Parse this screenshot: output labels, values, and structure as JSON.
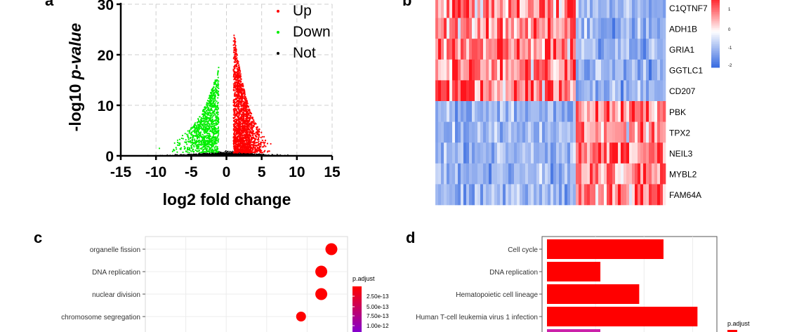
{
  "panels": {
    "a": "a",
    "b": "b",
    "c": "c",
    "d": "d"
  },
  "chart_data": [
    {
      "panel": "a",
      "type": "scatter",
      "title": "",
      "xlabel": "log2 fold change",
      "ylabel_prefix": "-log10 ",
      "ylabel_italic": "p-value",
      "xlim": [
        -15,
        15
      ],
      "ylim": [
        0,
        30
      ],
      "xticks": [
        -15,
        -10,
        -5,
        0,
        5,
        10,
        15
      ],
      "yticks": [
        0,
        10,
        20,
        30
      ],
      "grid": true,
      "legend": [
        "Up",
        "Down",
        "Not"
      ],
      "series": [
        {
          "name": "Up",
          "color": "#ff0000",
          "x_range": [
            1,
            7.5
          ],
          "max_y": 25,
          "approx_points": 1800
        },
        {
          "name": "Down",
          "color": "#00ee00",
          "x_range": [
            -10,
            -1
          ],
          "max_y": 17,
          "approx_points": 1000
        },
        {
          "name": "Not",
          "color": "#000000",
          "x_range": [
            -13,
            9
          ],
          "max_y": 1.5,
          "approx_points": 1500
        }
      ]
    },
    {
      "panel": "b",
      "type": "heatmap",
      "genes": [
        "C1QTNF7",
        "ADH1B",
        "GRIA1",
        "GGTLC1",
        "CD207",
        "PBK",
        "TPX2",
        "NEIL3",
        "MYBL2",
        "FAM64A"
      ],
      "group_pattern": [
        "high-left",
        "high-left",
        "high-left",
        "high-left",
        "high-left",
        "high-right",
        "high-right",
        "high-right",
        "high-right",
        "high-right"
      ],
      "colorbar_ticks": [
        "1",
        "0",
        "-1",
        "-2"
      ],
      "colors": {
        "high": "#e31a1c",
        "mid": "#ffffff",
        "low": "#4169e1"
      }
    },
    {
      "panel": "c",
      "type": "scatter",
      "categories": [
        "organelle fission",
        "DNA replication",
        "nuclear division",
        "chromosome segregation"
      ],
      "x_values": [
        0.092,
        0.087,
        0.087,
        0.077
      ],
      "x_range_guess": [
        0,
        0.1
      ],
      "legend_title": "p.adjust",
      "legend_ticks": [
        "2.50e-13",
        "5.00e-13",
        "7.50e-13",
        "1.00e-12"
      ]
    },
    {
      "panel": "d",
      "type": "bar",
      "orientation": "horizontal",
      "categories": [
        "Cell cycle",
        "DNA replication",
        "Hematopoietic cell lineage",
        "Human T-cell leukemia virus 1 infection"
      ],
      "values": [
        24,
        11,
        19,
        31
      ],
      "x_range_guess": [
        0,
        35
      ],
      "legend_title": "p.adjust"
    }
  ]
}
